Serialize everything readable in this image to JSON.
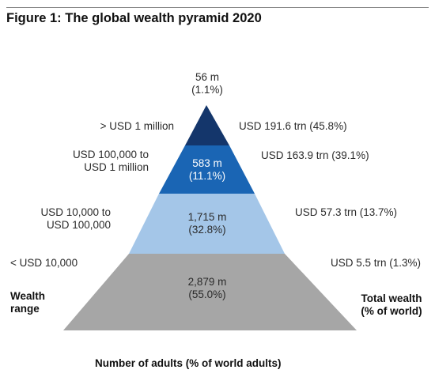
{
  "title": "Figure 1: The global wealth pyramid 2020",
  "tiers": [
    {
      "wealth_range": [
        "> USD 1 million"
      ],
      "adults": "56 m",
      "adults_pct": "(1.1%)",
      "total_wealth": "USD 191.6 trn (45.8%)",
      "color": "#14366b"
    },
    {
      "wealth_range": [
        "USD 100,000 to",
        "USD 1 million"
      ],
      "adults": "583 m",
      "adults_pct": "(11.1%)",
      "total_wealth": "USD 163.9 trn (39.1%)",
      "color": "#1a65b4"
    },
    {
      "wealth_range": [
        "USD 10,000 to",
        "USD 100,000"
      ],
      "adults": "1,715 m",
      "adults_pct": "(32.8%)",
      "total_wealth": "USD 57.3 trn (13.7%)",
      "color": "#a4c6e8"
    },
    {
      "wealth_range": [
        "< USD 10,000"
      ],
      "adults": "2,879 m",
      "adults_pct": "(55.0%)",
      "total_wealth": "USD 5.5 trn (1.3%)",
      "color": "#a6a6a6"
    }
  ],
  "left_heading": [
    "Wealth",
    "range"
  ],
  "right_heading": [
    "Total wealth",
    "(% of world)"
  ],
  "bottom_label": "Number of adults (% of world adults)"
}
